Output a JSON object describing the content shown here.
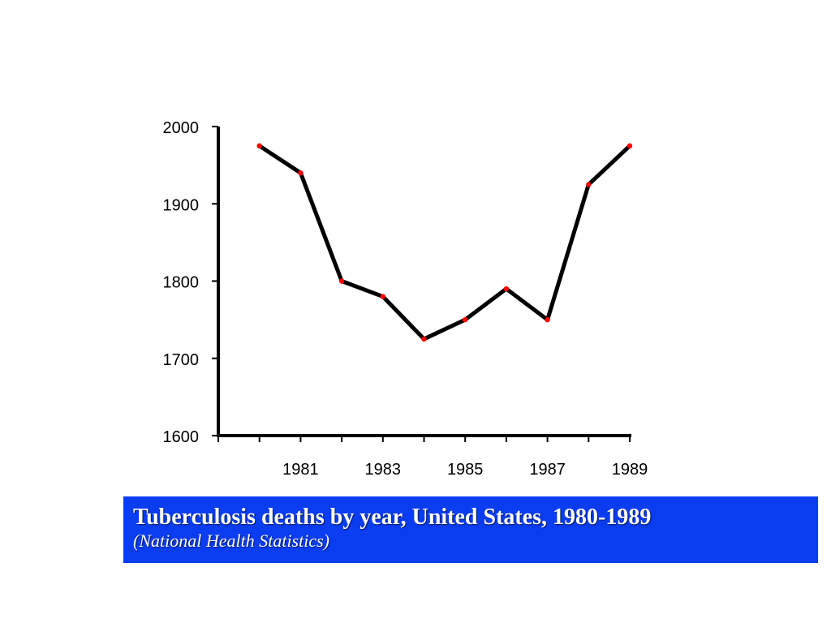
{
  "chart_data": {
    "type": "line",
    "title": "Tuberculosis deaths by year, United States, 1980-1989",
    "subtitle": "(National Health Statistics)",
    "xlabel": "",
    "ylabel": "",
    "x": [
      1980,
      1981,
      1982,
      1983,
      1984,
      1985,
      1986,
      1987,
      1988,
      1989
    ],
    "xlim": [
      1979,
      1989
    ],
    "x_tick_labels": [
      "1981",
      "1983",
      "1985",
      "1987",
      "1989"
    ],
    "ylim": [
      1600,
      2000
    ],
    "y_tick_labels": [
      "1600",
      "1700",
      "1800",
      "1900",
      "2000"
    ],
    "series": [
      {
        "values": [
          1975,
          1940,
          1800,
          1780,
          1725,
          1750,
          1790,
          1750,
          1925,
          1975
        ]
      }
    ],
    "grid": false,
    "legend": "none",
    "colors": {
      "line": "#000000",
      "marker": "#ff0000",
      "caption_background": "#0a3cf0",
      "caption_text": "#ffffff"
    }
  }
}
